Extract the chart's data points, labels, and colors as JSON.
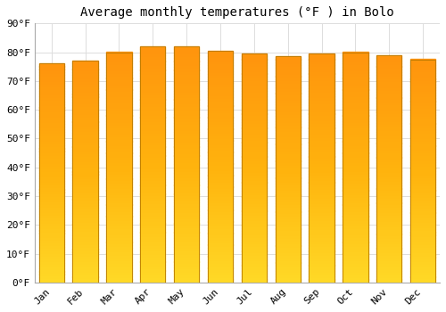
{
  "title": "Average monthly temperatures (°F ) in Bolo",
  "months": [
    "Jan",
    "Feb",
    "Mar",
    "Apr",
    "May",
    "Jun",
    "Jul",
    "Aug",
    "Sep",
    "Oct",
    "Nov",
    "Dec"
  ],
  "values": [
    76,
    77,
    80,
    82,
    82,
    80.5,
    79.5,
    78.5,
    79.5,
    80,
    79,
    77.5
  ],
  "bar_color_top": "#E8900A",
  "bar_color_mid": "#FFB800",
  "bar_color_bottom": "#FFD040",
  "bar_edge_color": "#B87800",
  "background_color": "#FFFFFF",
  "grid_color": "#DDDDDD",
  "title_fontsize": 10,
  "tick_fontsize": 8,
  "ylim": [
    0,
    90
  ],
  "yticks": [
    0,
    10,
    20,
    30,
    40,
    50,
    60,
    70,
    80,
    90
  ]
}
